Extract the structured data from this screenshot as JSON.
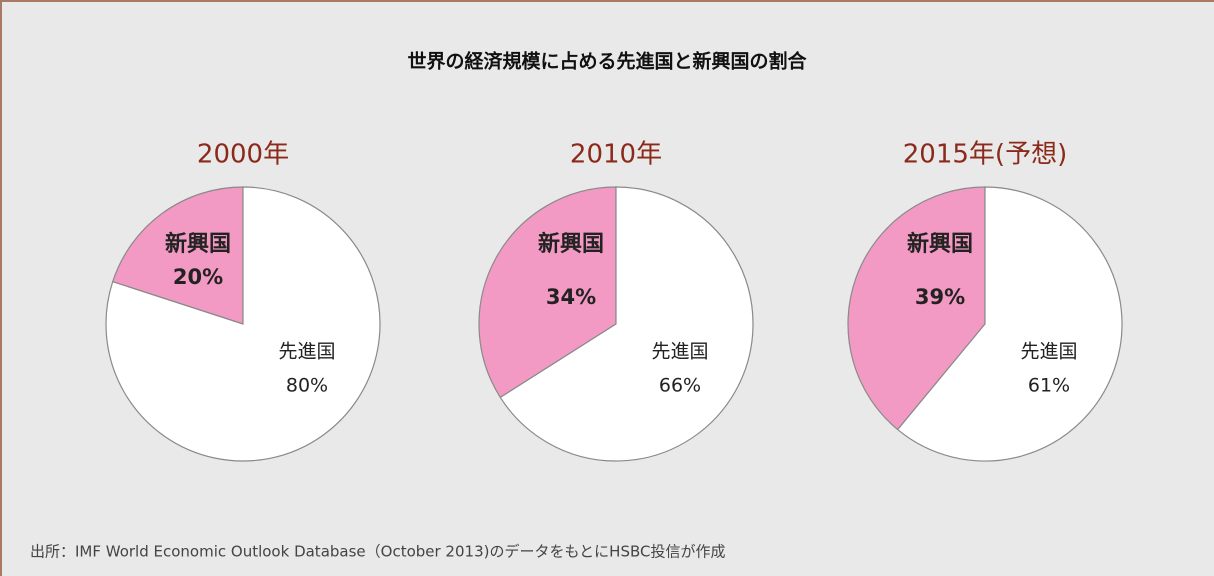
{
  "title": "世界の経済規模に占める先進国と新興国の割合",
  "source": "出所：IMF World Economic Outlook Database（October 2013)のデータをもとにHSBC投信が作成",
  "chart_data": [
    {
      "type": "pie",
      "title": "2000年",
      "categories": [
        "新興国",
        "先進国"
      ],
      "values": [
        20,
        80
      ],
      "value_labels": [
        "20%",
        "80%"
      ],
      "colors": [
        "#f29ac3",
        "#ffffff"
      ]
    },
    {
      "type": "pie",
      "title": "2010年",
      "categories": [
        "新興国",
        "先進国"
      ],
      "values": [
        34,
        66
      ],
      "value_labels": [
        "34%",
        "66%"
      ],
      "colors": [
        "#f29ac3",
        "#ffffff"
      ]
    },
    {
      "type": "pie",
      "title": "2015年(予想)",
      "categories": [
        "新興国",
        "先進国"
      ],
      "values": [
        39,
        61
      ],
      "value_labels": [
        "39%",
        "61%"
      ],
      "colors": [
        "#f29ac3",
        "#ffffff"
      ]
    }
  ]
}
